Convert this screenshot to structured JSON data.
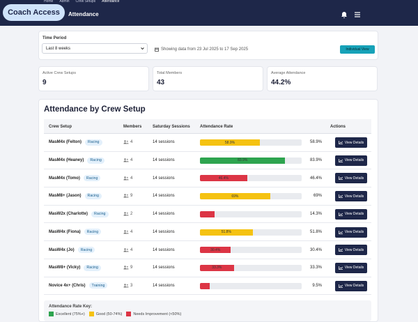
{
  "header": {
    "breadcrumb": [
      "Home",
      "Admin",
      "Crew Setups",
      "Attendance"
    ],
    "logo": "Coach Access",
    "page_title": "Attendance"
  },
  "filters": {
    "label": "Time Period",
    "selected": "Last 8 weeks",
    "range_text": "Showing data from 23 Jul 2025 to 17 Sep 2025",
    "button": "Individual View"
  },
  "stats": [
    {
      "label": "Active Crew Setups",
      "value": 9
    },
    {
      "label": "Total Members",
      "value": 43
    },
    {
      "label": "Average Attendance",
      "value": "44.2%"
    }
  ],
  "table": {
    "title": "Attendance by Crew Setup",
    "columns": [
      "Crew Setup",
      "Members",
      "Saturday Sessions",
      "Attendance Rate",
      "Actions"
    ],
    "action_label": "View Details",
    "rows": [
      {
        "name": "MasM4x (Felton)",
        "tag": "Racing",
        "members": 4,
        "sessions": "14 sessions",
        "rate": 58.9,
        "rate_label": "58.9%",
        "bar_label": "58.9%",
        "color": "#f5c211"
      },
      {
        "name": "MasM4x (Heaney)",
        "tag": "Racing",
        "members": 4,
        "sessions": "14 sessions",
        "rate": 83.9,
        "rate_label": "83.9%",
        "bar_label": "83.9%",
        "color": "#2ea44f"
      },
      {
        "name": "MasM4x (Tomo)",
        "tag": "Racing",
        "members": 4,
        "sessions": "14 sessions",
        "rate": 46.4,
        "rate_label": "46.4%",
        "bar_label": "46.4%",
        "color": "#dc3545"
      },
      {
        "name": "MasM8+ (Jason)",
        "tag": "Racing",
        "members": 9,
        "sessions": "14 sessions",
        "rate": 69,
        "rate_label": "69%",
        "bar_label": "69%",
        "color": "#f5c211"
      },
      {
        "name": "MasW2x (Charlotte)",
        "tag": "Racing",
        "members": 2,
        "sessions": "14 sessions",
        "rate": 14.3,
        "rate_label": "14.3%",
        "color": "#dc3545"
      },
      {
        "name": "MasW4x (Fiona)",
        "tag": "Racing",
        "members": 4,
        "sessions": "14 sessions",
        "rate": 51.8,
        "rate_label": "51.8%",
        "bar_label": "51.8%",
        "color": "#f5c211"
      },
      {
        "name": "MasW4x (Jo)",
        "tag": "Racing",
        "members": 4,
        "sessions": "14 sessions",
        "rate": 30.4,
        "rate_label": "30.4%",
        "bar_label": "30.4%",
        "color": "#dc3545"
      },
      {
        "name": "MasW8+ (Vicky)",
        "tag": "Racing",
        "members": 9,
        "sessions": "14 sessions",
        "rate": 33.3,
        "rate_label": "33.3%",
        "bar_label": "33.3%",
        "color": "#dc3545"
      },
      {
        "name": "Novice 4x+ (Chris)",
        "tag": "Training",
        "members": 3,
        "sessions": "14 sessions",
        "rate": 9.5,
        "rate_label": "9.5%",
        "color": "#dc3545"
      }
    ]
  },
  "key": {
    "title": "Attendance Rate Key:",
    "items": [
      {
        "label": "Excellent (75%+)",
        "color": "#2ea44f"
      },
      {
        "label": "Good (50-74%)",
        "color": "#f5c211"
      },
      {
        "label": "Needs Improvement (<50%)",
        "color": "#dc3545"
      }
    ]
  }
}
